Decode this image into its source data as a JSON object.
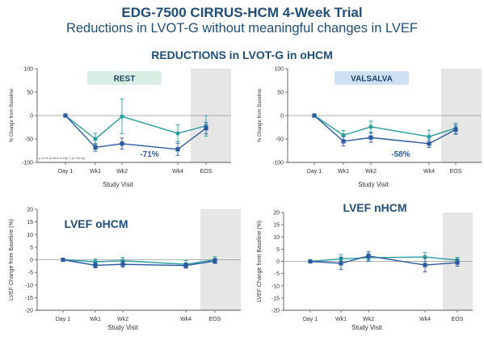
{
  "header": {
    "title": "EDG-7500 CIRRUS-HCM 4-Week Trial",
    "subtitle": "Reductions in LVOT-G without meaningful changes in LVEF",
    "section_title": "REDUCTIONS in LVOT-G in oHCM"
  },
  "colors": {
    "teal": "#2a9d9f",
    "navy": "#2c5aa0",
    "title": "#1f4e79",
    "rest_box": "#d9efe6",
    "valsalva_box": "#cfe0f5",
    "eos_shade": "#e6e6e6"
  },
  "chart_data": [
    {
      "type": "line",
      "badge": "REST",
      "title": "",
      "xlabel": "Study Visit",
      "ylabel": "% Change from Baseline",
      "ylim": [
        -100,
        100
      ],
      "yticks": [
        "100",
        "50",
        "0",
        "-50",
        "-100"
      ],
      "categories": [
        "Day 1",
        "Wk1",
        "Wk2",
        "Wk4",
        "EOS"
      ],
      "x": [
        0,
        1,
        2,
        4,
        5
      ],
      "footnote": "p ≤0.05 at Wk4 vs Day 1 @ 100 mg",
      "annotation": "-71%",
      "series": [
        {
          "color": "teal",
          "values": [
            0,
            -50,
            -2,
            -38,
            -22
          ],
          "err": [
            0,
            12,
            37,
            18,
            22
          ]
        },
        {
          "color": "navy",
          "values": [
            0,
            -68,
            -60,
            -72,
            -27
          ],
          "err": [
            0,
            8,
            12,
            13,
            12
          ]
        }
      ]
    },
    {
      "type": "line",
      "badge": "VALSALVA",
      "title": "",
      "xlabel": "Study Visit",
      "ylabel": "% Change from Baseline",
      "ylim": [
        -100,
        100
      ],
      "yticks": [
        "100",
        "50",
        "0",
        "-50",
        "-100"
      ],
      "categories": [
        "Day 1",
        "Wk1",
        "Wk2",
        "Wk4",
        "EOS"
      ],
      "x": [
        0,
        1,
        2,
        4,
        5
      ],
      "annotation": "-58%",
      "series": [
        {
          "color": "teal",
          "values": [
            0,
            -42,
            -24,
            -45,
            -27
          ],
          "err": [
            0,
            10,
            12,
            14,
            11
          ]
        },
        {
          "color": "navy",
          "values": [
            0,
            -55,
            -47,
            -60,
            -30
          ],
          "err": [
            0,
            10,
            10,
            8,
            10
          ]
        }
      ]
    },
    {
      "type": "line",
      "title": "LVEF oHCM",
      "xlabel": "Study Visit",
      "ylabel": "LVEF Change from Baseline (%)",
      "ylim": [
        -20,
        20
      ],
      "yticks": [
        "20",
        "15",
        "10",
        "5",
        "0",
        "-5",
        "-10",
        "-15",
        "-20"
      ],
      "categories": [
        "Day 1",
        "Wk1",
        "Wk2",
        "Wk4",
        "EOS"
      ],
      "x": [
        0,
        1,
        2,
        4,
        5
      ],
      "series": [
        {
          "color": "teal",
          "values": [
            0,
            -0.8,
            -0.4,
            -1.8,
            0
          ],
          "err": [
            0,
            1.2,
            1.4,
            1.5,
            1.2
          ]
        },
        {
          "color": "navy",
          "values": [
            0,
            -2.2,
            -1.8,
            -2.3,
            -0.5
          ],
          "err": [
            0,
            1.0,
            1.2,
            1.0,
            1.0
          ]
        }
      ]
    },
    {
      "type": "line",
      "title": "LVEF nHCM",
      "xlabel": "Study Visit",
      "ylabel": "LVEF Change from Baseline (%)",
      "ylim": [
        -20,
        20
      ],
      "yticks": [
        "20",
        "15",
        "10",
        "5",
        "0",
        "-5",
        "-10",
        "-15",
        "-20"
      ],
      "categories": [
        "Day 1",
        "Wk1",
        "Wk2",
        "Wk4",
        "EOS"
      ],
      "x": [
        0,
        1,
        2,
        4,
        5
      ],
      "series": [
        {
          "color": "teal",
          "values": [
            0,
            1.0,
            1.5,
            1.8,
            0.5
          ],
          "err": [
            0,
            1.8,
            1.6,
            1.8,
            1.2
          ]
        },
        {
          "color": "navy",
          "values": [
            0,
            -0.8,
            2.2,
            -1.5,
            -0.5
          ],
          "err": [
            0,
            2.5,
            1.8,
            2.8,
            1.5
          ]
        }
      ]
    }
  ]
}
